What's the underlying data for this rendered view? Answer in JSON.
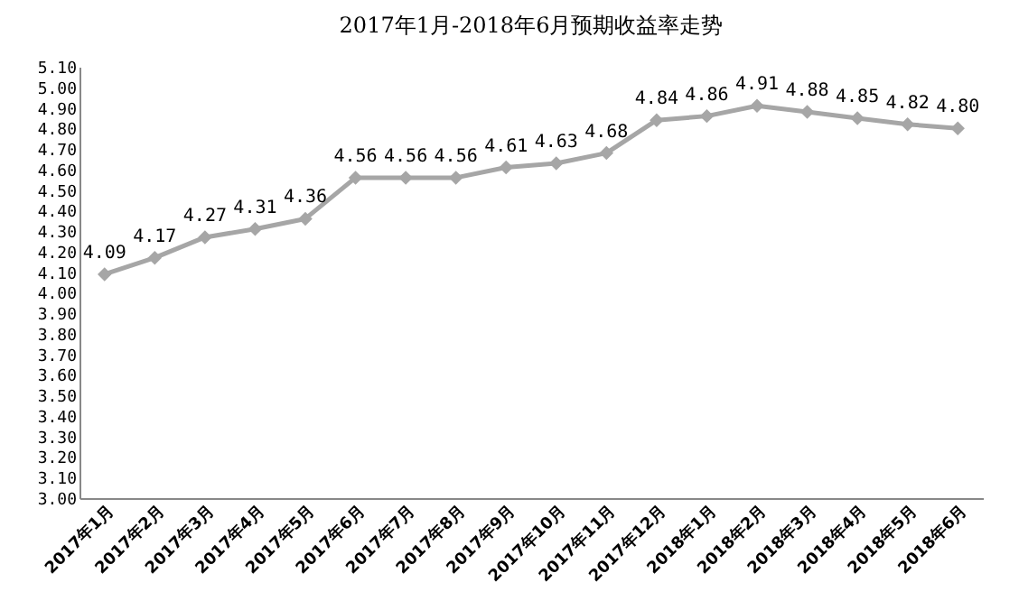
{
  "chart_data": {
    "type": "line",
    "title": "2017年1月-2018年6月预期收益率走势",
    "categories": [
      "2017年1月",
      "2017年2月",
      "2017年3月",
      "2017年4月",
      "2017年5月",
      "2017年6月",
      "2017年7月",
      "2017年8月",
      "2017年9月",
      "2017年10月",
      "2017年11月",
      "2017年12月",
      "2018年1月",
      "2018年2月",
      "2018年3月",
      "2018年4月",
      "2018年5月",
      "2018年6月"
    ],
    "series": [
      {
        "color": "#a6a6a6",
        "values": [
          4.09,
          4.17,
          4.27,
          4.31,
          4.36,
          4.56,
          4.56,
          4.56,
          4.61,
          4.63,
          4.68,
          4.84,
          4.86,
          4.91,
          4.88,
          4.85,
          4.82,
          4.8
        ],
        "value_labels": [
          "4.09",
          "4.17",
          "4.27",
          "4.31",
          "4.36",
          "4.56",
          "4.56",
          "4.56",
          "4.61",
          "4.63",
          "4.68",
          "4.84",
          "4.86",
          "4.91",
          "4.88",
          "4.85",
          "4.82",
          "4.80"
        ]
      }
    ],
    "ylim": [
      3.0,
      5.1
    ],
    "yticks": [
      {
        "value": 3.0,
        "label": "3.00"
      },
      {
        "value": 3.1,
        "label": "3.10"
      },
      {
        "value": 3.2,
        "label": "3.20"
      },
      {
        "value": 3.3,
        "label": "3.30"
      },
      {
        "value": 3.4,
        "label": "3.40"
      },
      {
        "value": 3.5,
        "label": "3.50"
      },
      {
        "value": 3.6,
        "label": "3.60"
      },
      {
        "value": 3.7,
        "label": "3.70"
      },
      {
        "value": 3.8,
        "label": "3.80"
      },
      {
        "value": 3.9,
        "label": "3.90"
      },
      {
        "value": 4.0,
        "label": "4.00"
      },
      {
        "value": 4.1,
        "label": "4.10"
      },
      {
        "value": 4.2,
        "label": "4.20"
      },
      {
        "value": 4.3,
        "label": "4.30"
      },
      {
        "value": 4.4,
        "label": "4.40"
      },
      {
        "value": 4.5,
        "label": "4.50"
      },
      {
        "value": 4.6,
        "label": "4.60"
      },
      {
        "value": 4.7,
        "label": "4.70"
      },
      {
        "value": 4.8,
        "label": "4.80"
      },
      {
        "value": 4.9,
        "label": "4.90"
      },
      {
        "value": 5.0,
        "label": "5.00"
      },
      {
        "value": 5.1,
        "label": "5.10"
      }
    ],
    "marker": "diamond",
    "line_style": "solid"
  }
}
